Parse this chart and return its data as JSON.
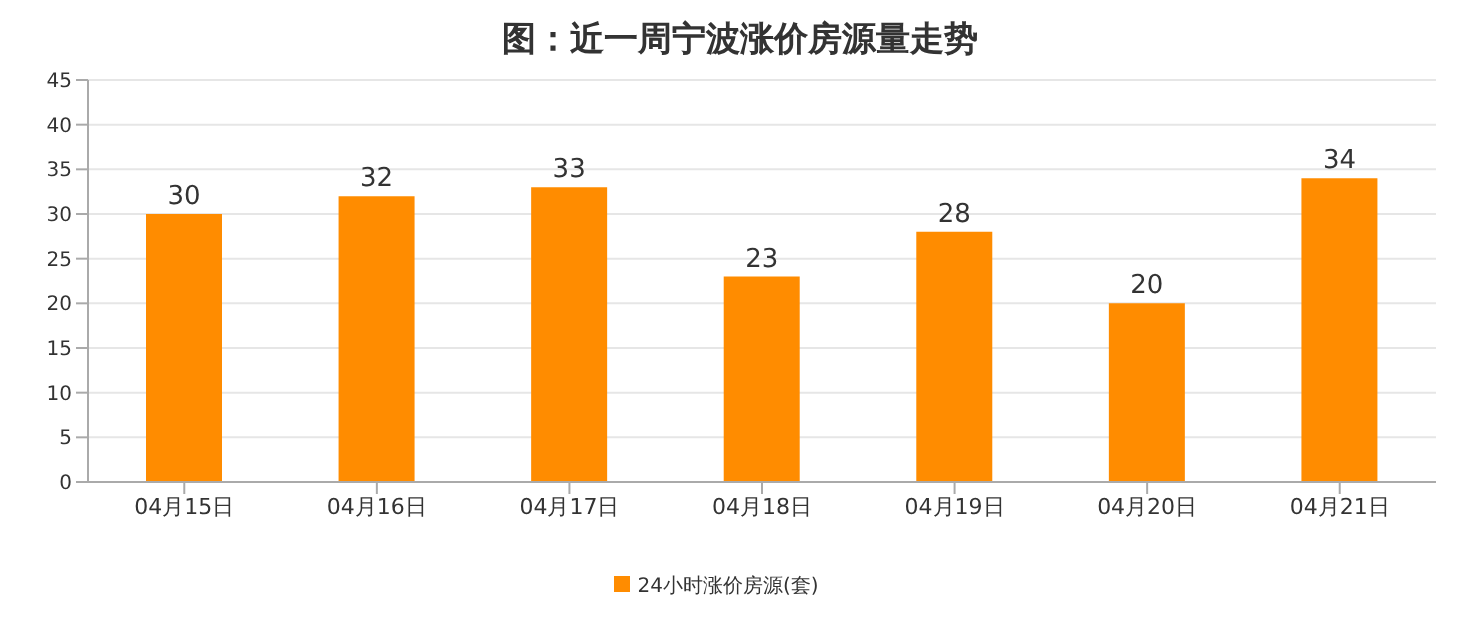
{
  "chart_data": {
    "type": "bar",
    "title": "图：近一周宁波涨价房源量走势",
    "categories": [
      "04月15日",
      "04月16日",
      "04月17日",
      "04月18日",
      "04月19日",
      "04月20日",
      "04月21日"
    ],
    "series": [
      {
        "name": "24小时涨价房源(套)",
        "color": "#ff8c00",
        "values": [
          30,
          32,
          33,
          23,
          28,
          20,
          34
        ]
      }
    ],
    "ylim": [
      0,
      45
    ],
    "yticks": [
      0,
      5,
      10,
      15,
      20,
      25,
      30,
      35,
      40,
      45
    ],
    "grid": "y",
    "legend": "bottom",
    "data_labels": true
  }
}
